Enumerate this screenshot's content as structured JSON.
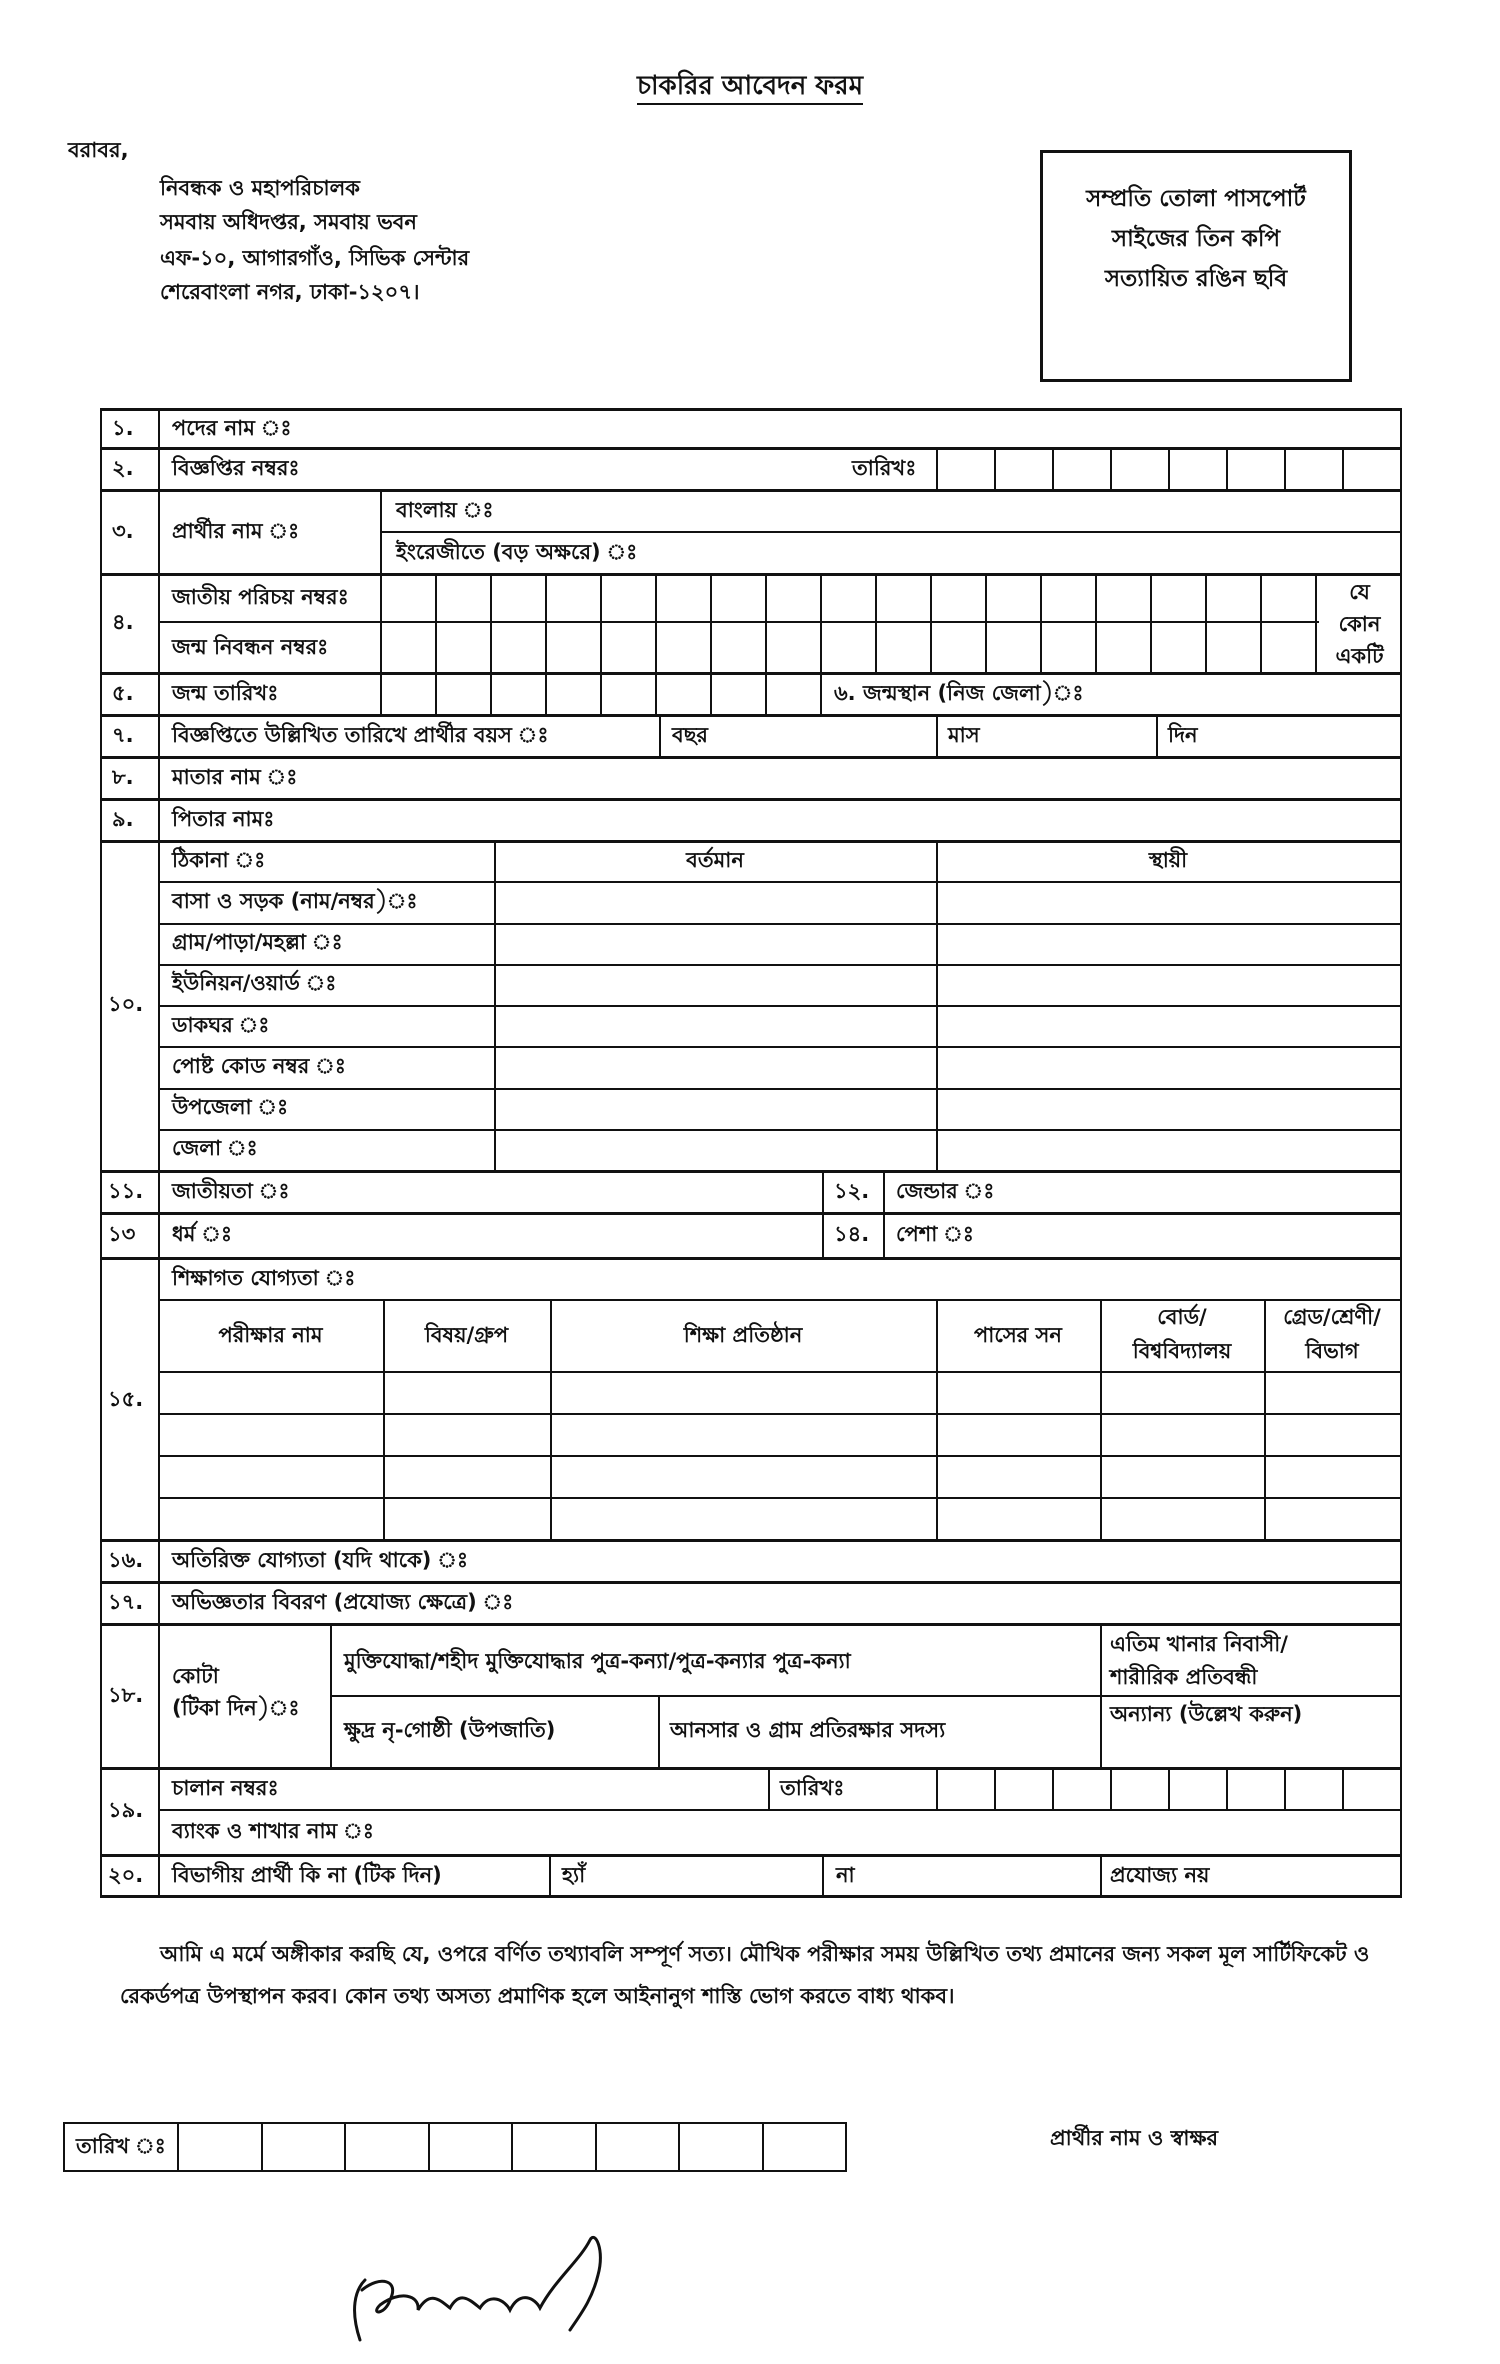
{
  "title": "চাকরির আবেদন ফরম",
  "address": {
    "salutation": "বরাবর,",
    "lines": [
      "নিবন্ধক ও মহাপরিচালক",
      "সমবায় অধিদপ্তর, সমবায় ভবন",
      "এফ-১০, আগারগাঁও, সিভিক সেন্টার",
      "শেরেবাংলা নগর, ঢাকা-১২০৭।"
    ]
  },
  "photo_box": {
    "lines": [
      "সম্প্রতি তোলা পাসপোর্ট",
      "সাইজের তিন কপি",
      "সত্যায়িত রঙিন ছবি"
    ]
  },
  "rows": {
    "r1": {
      "num": "১.",
      "label": "পদের নাম ঃ"
    },
    "r2": {
      "num": "২.",
      "label": "বিজ্ঞপ্তির নম্বরঃ",
      "date": "তারিখঃ"
    },
    "r3": {
      "num": "৩.",
      "label": "প্রার্থীর নাম ঃ",
      "bangla": "বাংলায় ঃ",
      "english": "ইংরেজীতে (বড় অক্ষরে) ঃ"
    },
    "r4": {
      "num": "৪.",
      "nid": "জাতীয় পরিচয় নম্বরঃ",
      "birth_reg": "জন্ম নিবন্ধন নম্বরঃ",
      "note": [
        "যে",
        "কোন",
        "একটি"
      ]
    },
    "r5": {
      "num": "৫.",
      "label": "জন্ম তারিখঃ",
      "birthplace": "৬. জন্মস্থান (নিজ জেলা)ঃ"
    },
    "r7": {
      "num": "৭.",
      "label": "বিজ্ঞপ্তিতে উল্লিখিত তারিখে প্রার্থীর বয়স ঃ",
      "year": "বছর",
      "month": "মাস",
      "day": "দিন"
    },
    "r8": {
      "num": "৮.",
      "label": "মাতার নাম ঃ"
    },
    "r9": {
      "num": "৯.",
      "label": "পিতার নামঃ"
    },
    "r10": {
      "num": "১০.",
      "header": "ঠিকানা ঃ",
      "present": "বর্তমান",
      "permanent": "স্থায়ী",
      "fields": [
        "বাসা ও সড়ক (নাম/নম্বর)ঃ",
        "গ্রাম/পাড়া/মহল্লা ঃ",
        "ইউনিয়ন/ওয়ার্ড ঃ",
        "ডাকঘর ঃ",
        "পোষ্ট কোড নম্বর ঃ",
        "উপজেলা ঃ",
        "জেলা ঃ"
      ]
    },
    "r11": {
      "num": "১১.",
      "label": "জাতীয়তা ঃ"
    },
    "r12": {
      "num": "১২.",
      "label": "জেন্ডার ঃ"
    },
    "r13": {
      "num": "১৩",
      "label": "ধর্ম ঃ"
    },
    "r14": {
      "num": "১৪.",
      "label": "পেশা ঃ"
    },
    "r15": {
      "num": "১৫.",
      "label": "শিক্ষাগত যোগ্যতা ঃ",
      "columns": [
        "পরীক্ষার নাম",
        "বিষয়/গ্রুপ",
        "শিক্ষা প্রতিষ্ঠান",
        "পাসের সন",
        "বোর্ড/",
        "বিশ্ববিদ্যালয়",
        "গ্রেড/শ্রেণী/",
        "বিভাগ"
      ]
    },
    "r16": {
      "num": "১৬.",
      "label": "অতিরিক্ত যোগ্যতা (যদি থাকে) ঃ"
    },
    "r17": {
      "num": "১৭.",
      "label": "অভিজ্ঞতার বিবরণ (প্রযোজ্য ক্ষেত্রে) ঃ"
    },
    "r18": {
      "num": "১৮.",
      "label1": "কোটা",
      "label2": "(টিকা দিন)ঃ",
      "freedom": "মুক্তিযোদ্ধা/শহীদ মুক্তিযোদ্ধার পুত্র-কন্যা/পুত্র-কন্যার পুত্র-কন্যা",
      "orphan1": "এতিম খানার নিবাসী/",
      "orphan2": "শারীরিক প্রতিবন্ধী",
      "ethnic": "ক্ষুদ্র নৃ-গোষ্ঠী (উপজাতি)",
      "ansar": "আনসার ও গ্রাম প্রতিরক্ষার সদস্য",
      "others": "অন্যান্য (উল্লেখ করুন)"
    },
    "r19": {
      "num": "১৯.",
      "challan": "চালান নম্বরঃ",
      "date": "তারিখঃ",
      "bank": "ব্যাংক ও শাখার নাম ঃ"
    },
    "r20": {
      "num": "২০.",
      "label": "বিভাগীয় প্রার্থী কি না (টিক দিন)",
      "yes": "হ্যাঁ",
      "no": "না",
      "na": "প্রযোজ্য নয়"
    }
  },
  "declaration": "আমি এ মর্মে অঙ্গীকার করছি যে, ওপরে বর্ণিত তথ্যাবলি সম্পূর্ণ সত্য। মৌখিক পরীক্ষার সময় উল্লিখিত তথ্য প্রমানের জন্য সকল মূল সার্টিফিকেট ও রেকর্ডপত্র  উপস্থাপন করব। কোন তথ্য অসত্য প্রমাণিক হলে আইনানুগ শাস্তি ভোগ করতে বাধ্য থাকব।",
  "footer": {
    "date_label": "তারিখ ঃ",
    "signature_label": "প্রার্থীর নাম ও স্বাক্ষর"
  }
}
